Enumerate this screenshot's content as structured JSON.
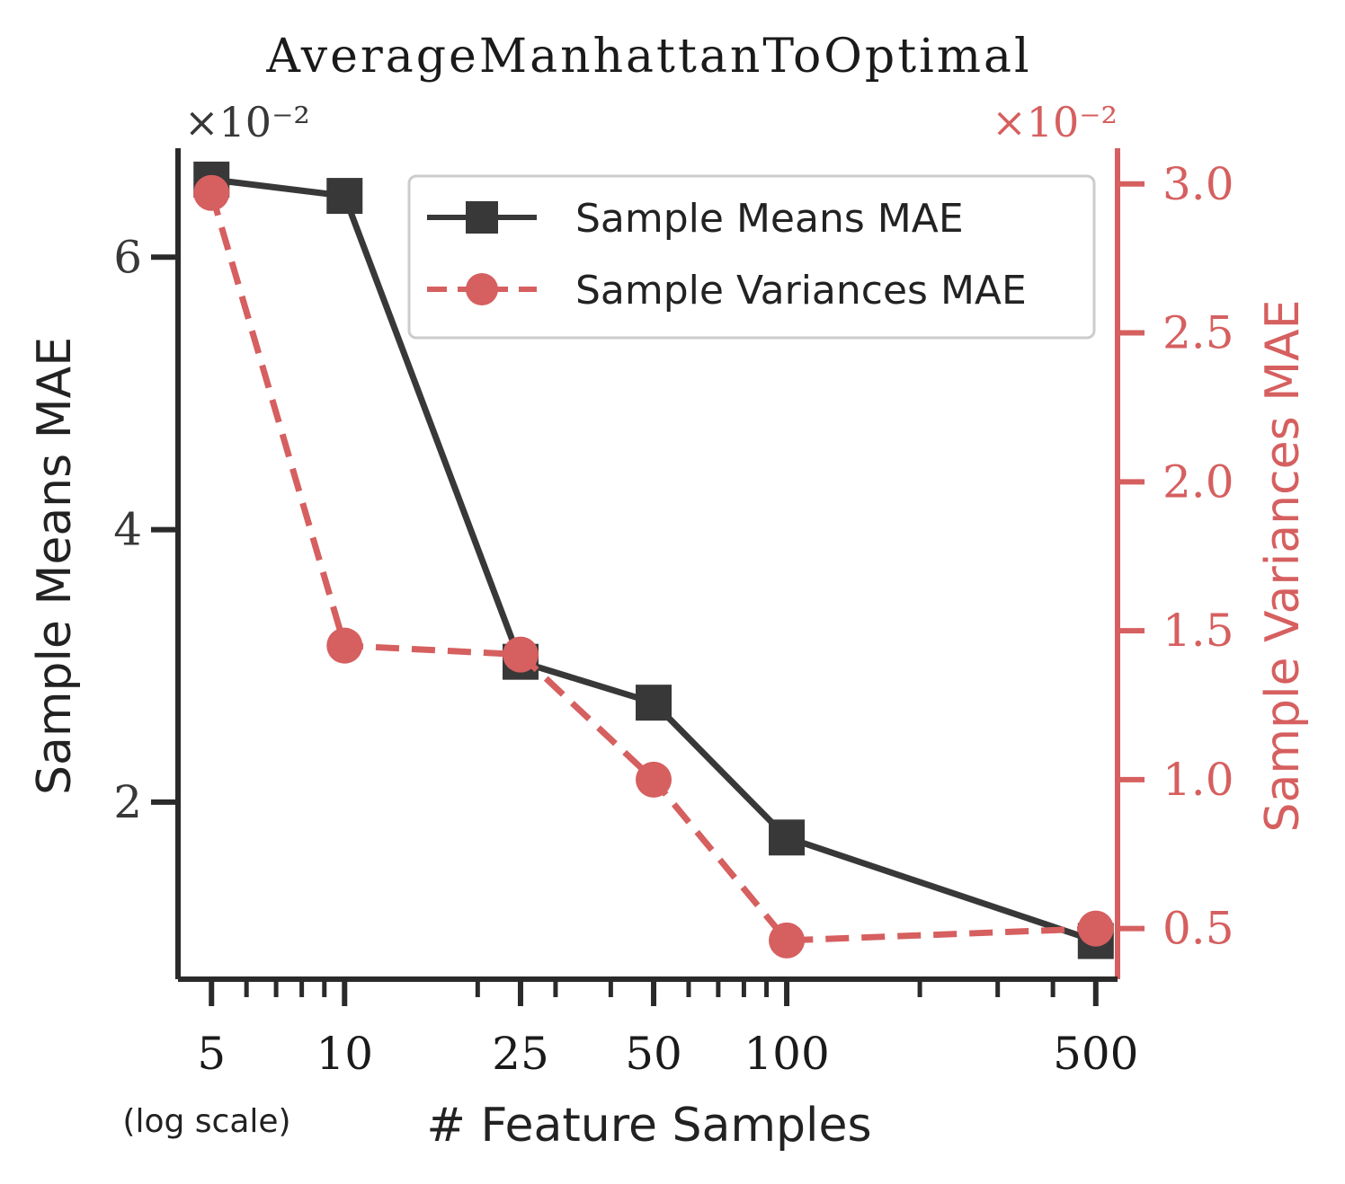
{
  "chart_data": {
    "type": "line",
    "title": "AverageManhattanToOptimal",
    "xlabel": "# Feature Samples",
    "xlabel_note": "(log scale)",
    "x_scale": "log",
    "x": [
      5,
      10,
      25,
      50,
      100,
      500
    ],
    "x_tick_labels": [
      "5",
      "10",
      "25",
      "50",
      "100",
      "500"
    ],
    "xlim": [
      4.2,
      560
    ],
    "left_axis": {
      "label": "Sample Means MAE",
      "multiplier": "×10⁻²",
      "ticks": [
        2,
        4,
        6
      ],
      "tick_labels": [
        "2",
        "4",
        "6"
      ],
      "ylim": [
        0.7,
        6.8
      ]
    },
    "right_axis": {
      "label": "Sample Variances MAE",
      "multiplier": "×10⁻²",
      "ticks": [
        0.5,
        1.0,
        1.5,
        2.0,
        2.5,
        3.0
      ],
      "tick_labels": [
        "0.5",
        "1.0",
        "1.5",
        "2.0",
        "2.5",
        "3.0"
      ],
      "ylim": [
        0.33,
        3.12
      ],
      "color": "#d65f5f"
    },
    "series": [
      {
        "name": "Sample Means MAE",
        "axis": "left",
        "values": [
          6.57,
          6.45,
          3.03,
          2.73,
          1.74,
          0.98
        ],
        "color": "#383838",
        "marker": "square",
        "line": "solid"
      },
      {
        "name": "Sample Variances MAE",
        "axis": "right",
        "values": [
          2.97,
          1.45,
          1.42,
          1.0,
          0.46,
          0.5
        ],
        "color": "#d65f5f",
        "marker": "circle",
        "line": "dashed"
      }
    ],
    "legend": {
      "placement": "top-right"
    },
    "grid": false
  }
}
